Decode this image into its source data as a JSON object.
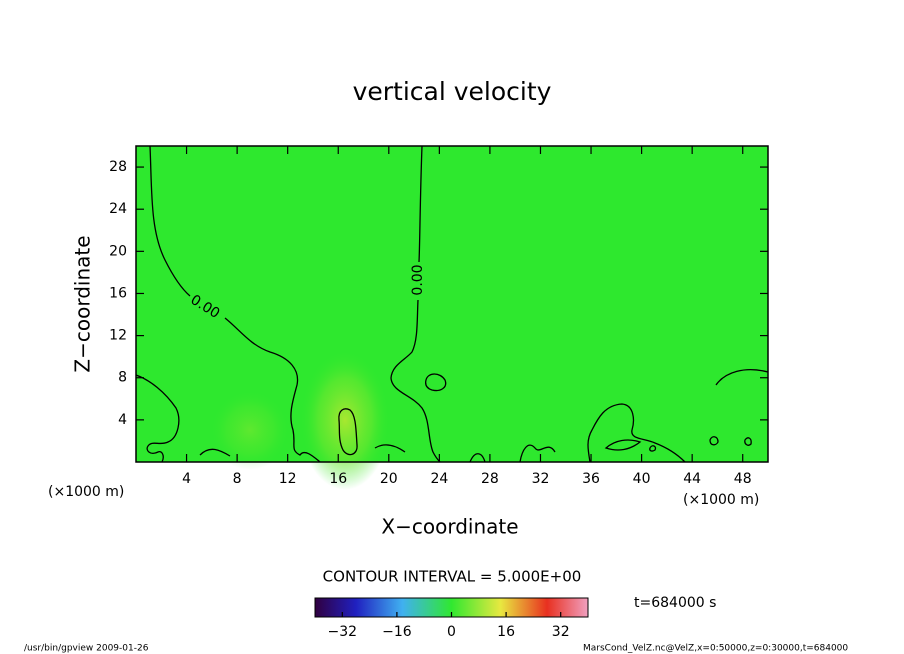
{
  "chart_data": {
    "type": "contour",
    "title": "vertical velocity",
    "x_label": "X−coordinate",
    "y_label": "Z−coordinate",
    "x_units": "(×1000 m)",
    "y_units": "(×1000 m)",
    "xlim": [
      0,
      50
    ],
    "xticks": [
      4,
      8,
      12,
      16,
      20,
      24,
      28,
      32,
      36,
      40,
      44,
      48
    ],
    "ylim": [
      0,
      30
    ],
    "yticks": [
      4,
      8,
      12,
      16,
      20,
      24,
      28
    ],
    "fill_color": "#2ee82e",
    "contour_labels": [
      {
        "value": 0,
        "label": "0.00"
      },
      {
        "value": 0,
        "label": "0.00"
      }
    ],
    "contour_interval_text": "CONTOUR INTERVAL = 5.000E+00",
    "time_text": "t=684000 s",
    "colorbar": {
      "lim": [
        -40,
        40
      ],
      "ticks": [
        {
          "value": -32,
          "label": "−32"
        },
        {
          "value": -16,
          "label": "−16"
        },
        0,
        16,
        32
      ]
    },
    "footer_left": "/usr/bin/gpview  2009-01-26",
    "footer_right": "MarsCond_VelZ.nc@VelZ,x=0:50000,z=0:30000,t=684000"
  }
}
